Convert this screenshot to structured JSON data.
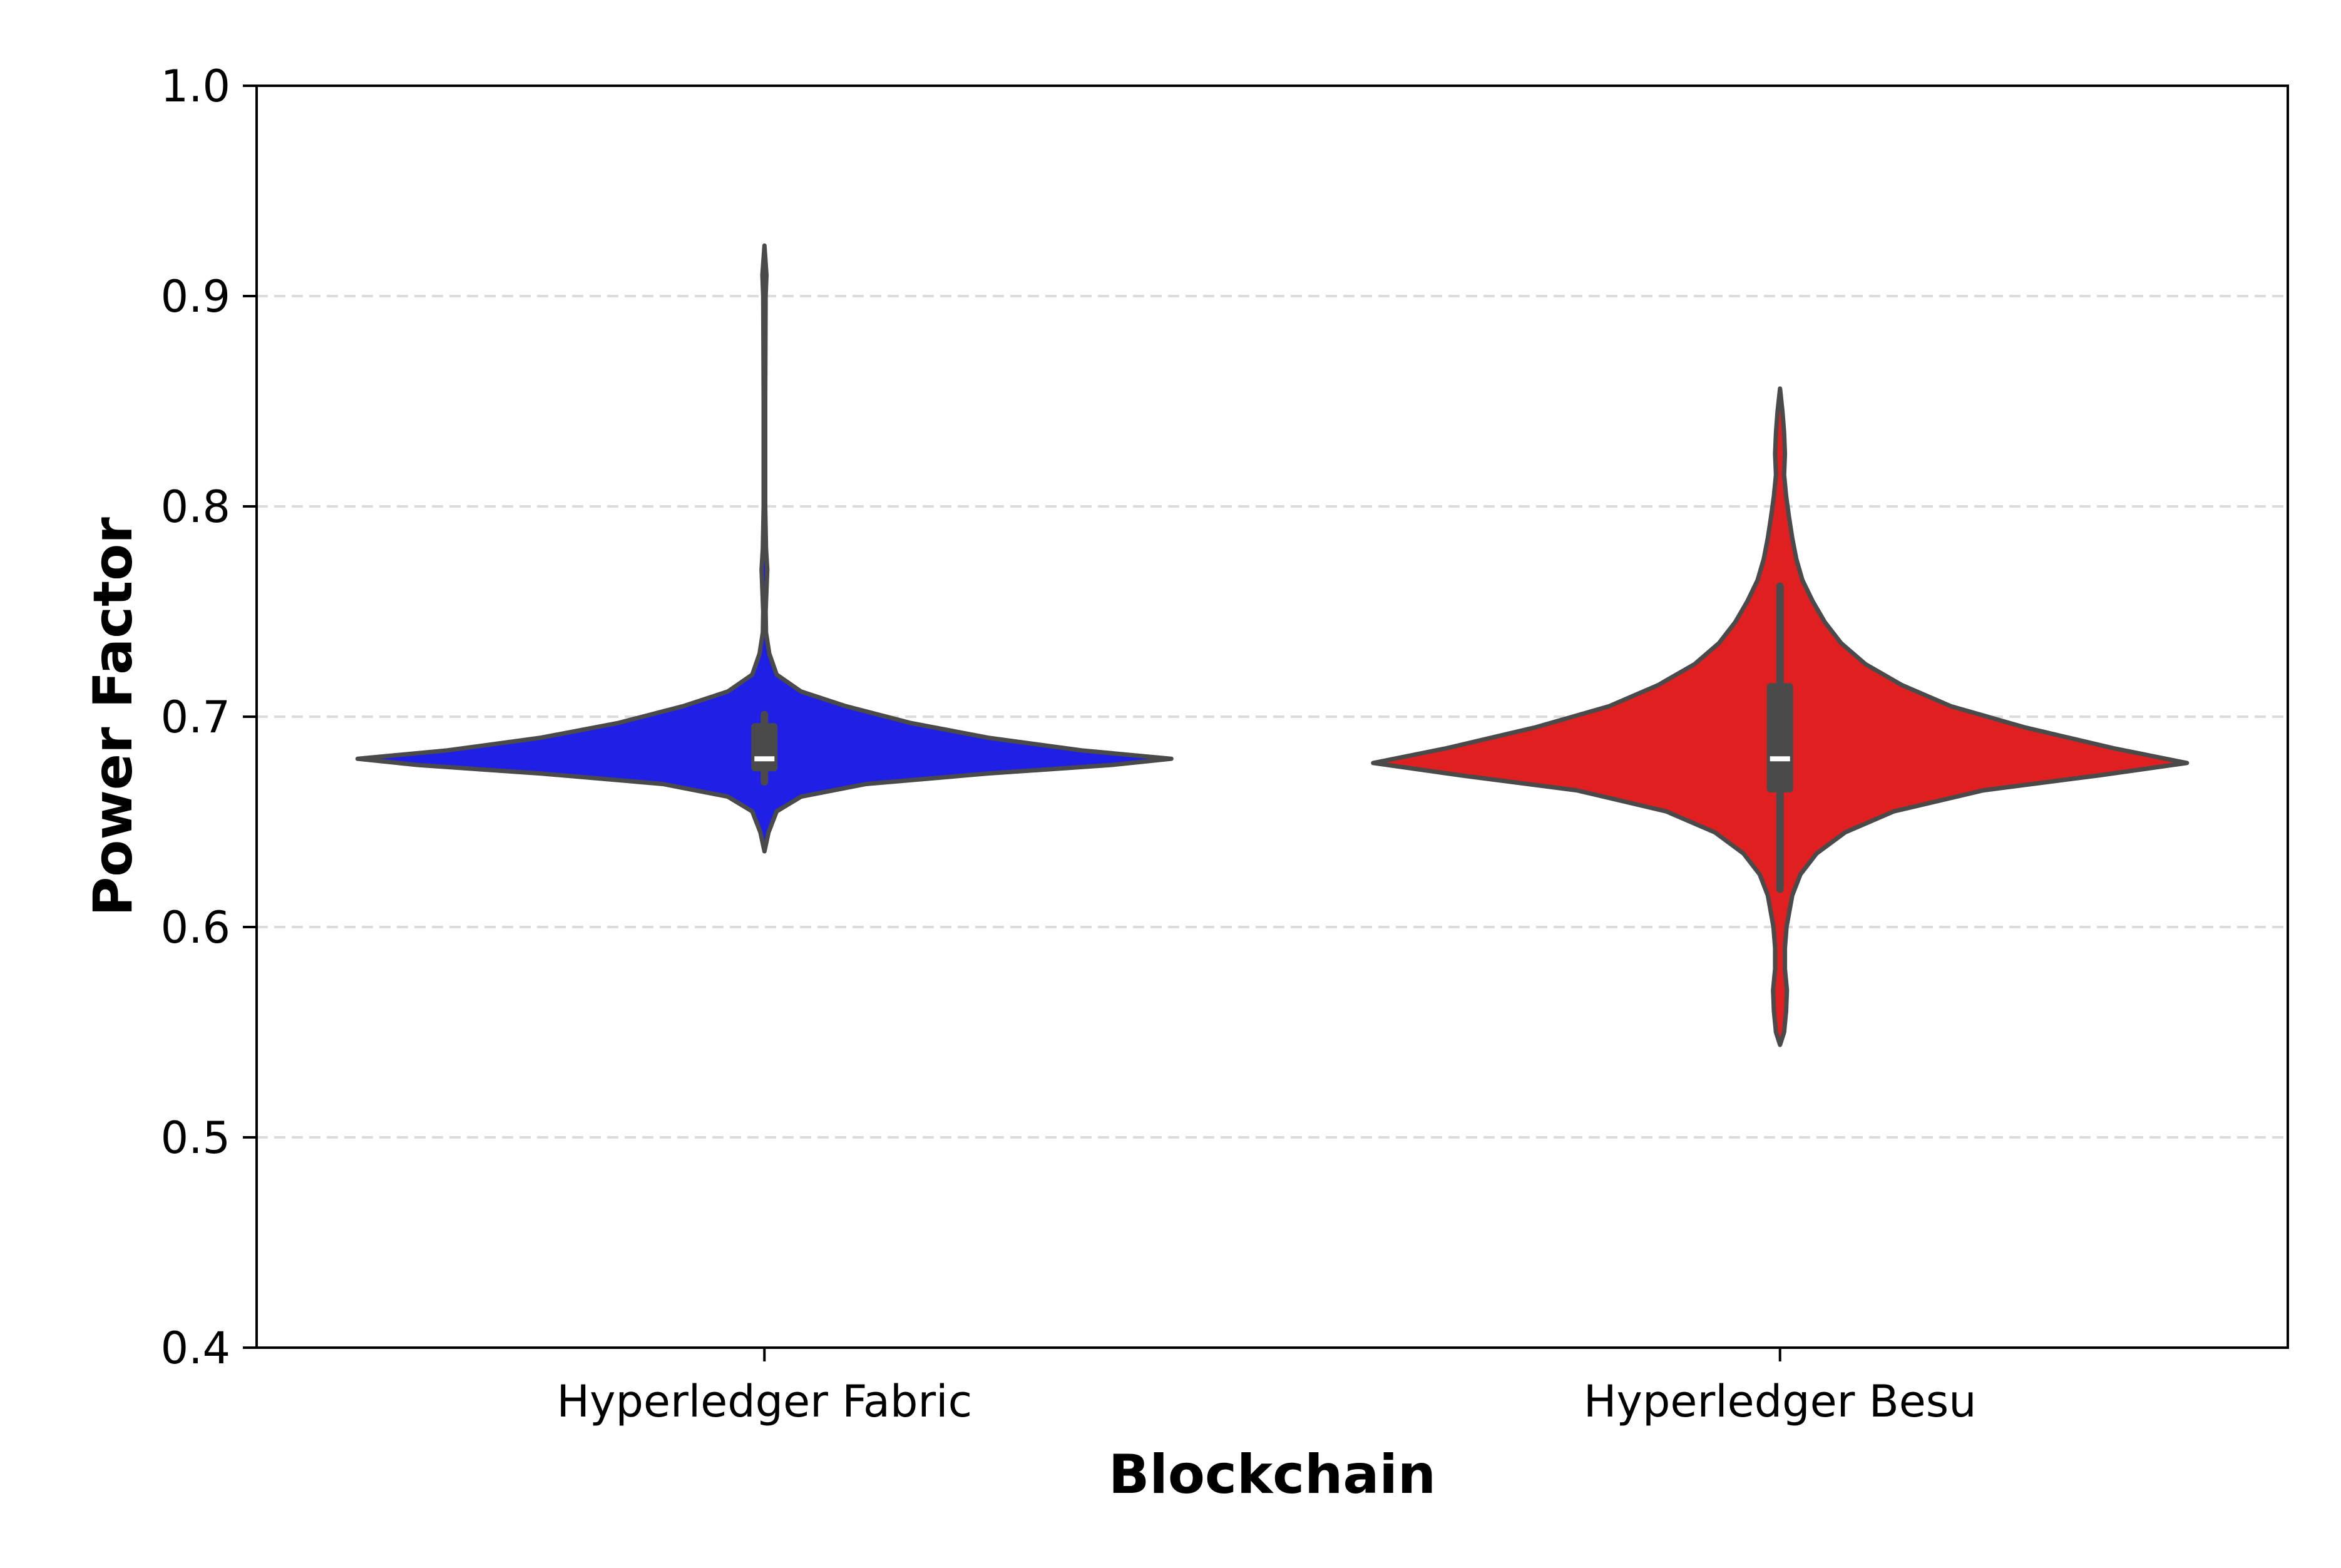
{
  "chart_data": {
    "type": "violin",
    "xlabel": "Blockchain",
    "ylabel": "Power Factor",
    "ylim": [
      0.4,
      1.0
    ],
    "yticks": [
      "0.4",
      "0.5",
      "0.6",
      "0.7",
      "0.8",
      "0.9",
      "1.0"
    ],
    "grid": "horizontal dashed",
    "categories": [
      "Hyperledger Fabric",
      "Hyperledger Besu"
    ],
    "series": [
      {
        "category": "Hyperledger Fabric",
        "color": "#1f1fe6",
        "outline_color": "#4a4a4a",
        "min": 0.636,
        "max": 0.924,
        "q1": 0.674,
        "median": 0.68,
        "q3": 0.697,
        "whisker_low": 0.669,
        "whisker_high": 0.701,
        "density": [
          [
            0.636,
            0.0
          ],
          [
            0.645,
            0.01
          ],
          [
            0.655,
            0.03
          ],
          [
            0.662,
            0.09
          ],
          [
            0.668,
            0.25
          ],
          [
            0.673,
            0.55
          ],
          [
            0.677,
            0.85
          ],
          [
            0.68,
            1.0
          ],
          [
            0.684,
            0.78
          ],
          [
            0.69,
            0.55
          ],
          [
            0.697,
            0.36
          ],
          [
            0.705,
            0.2
          ],
          [
            0.712,
            0.09
          ],
          [
            0.72,
            0.03
          ],
          [
            0.73,
            0.012
          ],
          [
            0.74,
            0.004
          ],
          [
            0.75,
            0.003
          ],
          [
            0.76,
            0.005
          ],
          [
            0.77,
            0.007
          ],
          [
            0.78,
            0.004
          ],
          [
            0.8,
            0.002
          ],
          [
            0.85,
            0.002
          ],
          [
            0.9,
            0.003
          ],
          [
            0.91,
            0.005
          ],
          [
            0.924,
            0.0
          ]
        ]
      },
      {
        "category": "Hyperledger Besu",
        "color": "#e02020",
        "outline_color": "#4a4a4a",
        "min": 0.544,
        "max": 0.856,
        "q1": 0.664,
        "median": 0.68,
        "q3": 0.716,
        "whisker_low": 0.618,
        "whisker_high": 0.762,
        "density": [
          [
            0.544,
            0.0
          ],
          [
            0.55,
            0.01
          ],
          [
            0.56,
            0.015
          ],
          [
            0.57,
            0.017
          ],
          [
            0.58,
            0.012
          ],
          [
            0.59,
            0.012
          ],
          [
            0.6,
            0.016
          ],
          [
            0.615,
            0.03
          ],
          [
            0.625,
            0.05
          ],
          [
            0.635,
            0.09
          ],
          [
            0.645,
            0.16
          ],
          [
            0.655,
            0.28
          ],
          [
            0.665,
            0.5
          ],
          [
            0.672,
            0.78
          ],
          [
            0.678,
            1.0
          ],
          [
            0.685,
            0.82
          ],
          [
            0.695,
            0.6
          ],
          [
            0.705,
            0.42
          ],
          [
            0.715,
            0.3
          ],
          [
            0.725,
            0.21
          ],
          [
            0.735,
            0.15
          ],
          [
            0.745,
            0.11
          ],
          [
            0.755,
            0.08
          ],
          [
            0.765,
            0.055
          ],
          [
            0.775,
            0.04
          ],
          [
            0.785,
            0.03
          ],
          [
            0.795,
            0.022
          ],
          [
            0.805,
            0.015
          ],
          [
            0.815,
            0.01
          ],
          [
            0.825,
            0.012
          ],
          [
            0.835,
            0.01
          ],
          [
            0.845,
            0.006
          ],
          [
            0.856,
            0.0
          ]
        ]
      }
    ]
  }
}
